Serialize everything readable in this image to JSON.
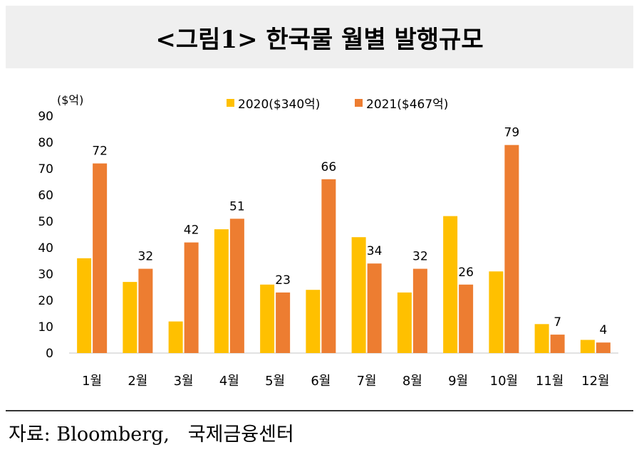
{
  "title": "<그림1> 한국물 월별 발행규모",
  "source": "자료: Bloomberg,   국제금융센터",
  "chart_data": {
    "type": "bar",
    "title": "<그림1> 한국물 월별 발행규모",
    "ylabel": "($억)",
    "xlabel": "",
    "ylim": [
      0,
      90
    ],
    "yticks": [
      0,
      10,
      20,
      30,
      40,
      50,
      60,
      70,
      80,
      90
    ],
    "grid": false,
    "legend": "top-center",
    "categories": [
      "1월",
      "2월",
      "3월",
      "4월",
      "5월",
      "6월",
      "7월",
      "8월",
      "9월",
      "10월",
      "11월",
      "12월"
    ],
    "series": [
      {
        "name": "2020($340억)",
        "color": "#ffc000",
        "values": [
          36,
          27,
          12,
          47,
          26,
          24,
          44,
          23,
          52,
          31,
          11,
          5
        ],
        "labels_shown": false
      },
      {
        "name": "2021($467억)",
        "color": "#ed7d31",
        "values": [
          72,
          32,
          42,
          51,
          23,
          66,
          34,
          32,
          26,
          79,
          7,
          4
        ],
        "labels_shown": true
      }
    ]
  }
}
